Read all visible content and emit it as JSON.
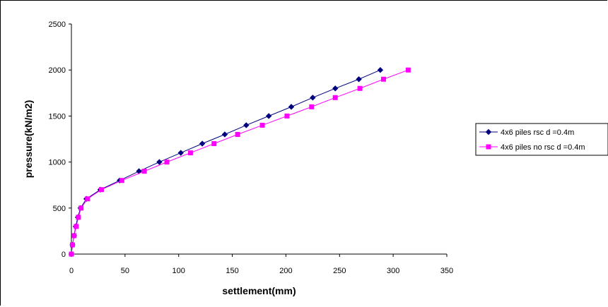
{
  "chart_data": {
    "type": "line",
    "title": "",
    "xlabel": "settlement(mm)",
    "ylabel": "pressure(kN/m2)",
    "xlim": [
      0,
      350
    ],
    "ylim": [
      0,
      2500
    ],
    "xticks": [
      0,
      50,
      100,
      150,
      200,
      250,
      300,
      350
    ],
    "yticks": [
      0,
      500,
      1000,
      1500,
      2000,
      2500
    ],
    "grid": false,
    "legend_position": "right",
    "series": [
      {
        "name": "4x6 piles rsc d =0.4m",
        "color": "#00007F",
        "marker": "diamond",
        "points": [
          [
            0,
            0
          ],
          [
            1,
            100
          ],
          [
            2.5,
            200
          ],
          [
            4,
            300
          ],
          [
            6,
            400
          ],
          [
            8.5,
            500
          ],
          [
            14,
            600
          ],
          [
            27,
            700
          ],
          [
            45,
            800
          ],
          [
            63,
            900
          ],
          [
            82,
            1000
          ],
          [
            102,
            1100
          ],
          [
            122,
            1200
          ],
          [
            143,
            1300
          ],
          [
            163,
            1400
          ],
          [
            184,
            1500
          ],
          [
            205,
            1600
          ],
          [
            225,
            1700
          ],
          [
            246,
            1800
          ],
          [
            268,
            1900
          ],
          [
            288,
            2000
          ]
        ]
      },
      {
        "name": "4x6 piles no rsc d =0.4m",
        "color": "#FF00FF",
        "marker": "square",
        "points": [
          [
            0,
            0
          ],
          [
            1,
            100
          ],
          [
            2.5,
            200
          ],
          [
            4.5,
            300
          ],
          [
            6.5,
            400
          ],
          [
            9,
            500
          ],
          [
            15,
            600
          ],
          [
            28,
            700
          ],
          [
            47,
            800
          ],
          [
            68,
            900
          ],
          [
            89,
            1000
          ],
          [
            111,
            1100
          ],
          [
            133,
            1200
          ],
          [
            155,
            1300
          ],
          [
            178,
            1400
          ],
          [
            201,
            1500
          ],
          [
            224,
            1600
          ],
          [
            246,
            1700
          ],
          [
            269,
            1800
          ],
          [
            291,
            1900
          ],
          [
            314,
            2000
          ]
        ]
      }
    ]
  }
}
